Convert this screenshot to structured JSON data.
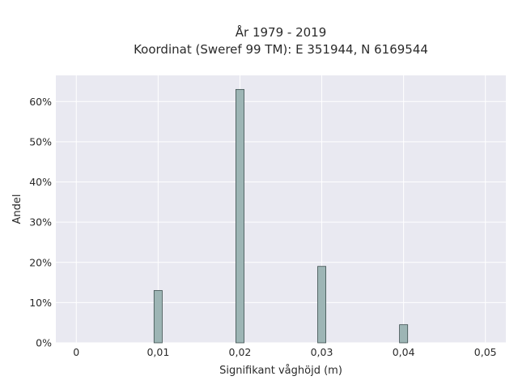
{
  "chart_data": {
    "type": "bar",
    "title_line1": "År 1979 - 2019",
    "title_line2": "Koordinat (Sweref 99 TM): E 351944, N 6169544",
    "xlabel": "Signifikant våghöjd (m)",
    "ylabel": "Andel",
    "x": [
      0.01,
      0.02,
      0.03,
      0.04
    ],
    "values": [
      13,
      63,
      19,
      4.5
    ],
    "xlim": [
      -0.0025,
      0.0525
    ],
    "ylim": [
      0,
      66.5
    ],
    "xticks": [
      0,
      0.01,
      0.02,
      0.03,
      0.04,
      0.05
    ],
    "xtick_labels": [
      "0",
      "0,01",
      "0,02",
      "0,03",
      "0,04",
      "0,05"
    ],
    "yticks": [
      0,
      10,
      20,
      30,
      40,
      50,
      60
    ],
    "ytick_labels": [
      "0%",
      "10%",
      "20%",
      "30%",
      "40%",
      "50%",
      "60%"
    ],
    "bar_width": 0.001,
    "grid": true,
    "colors": {
      "plot_background": "#e9e9f1",
      "grid": "#ffffff",
      "bar_fill": "#9db5b5",
      "bar_edge": "#3d4f4f"
    }
  }
}
